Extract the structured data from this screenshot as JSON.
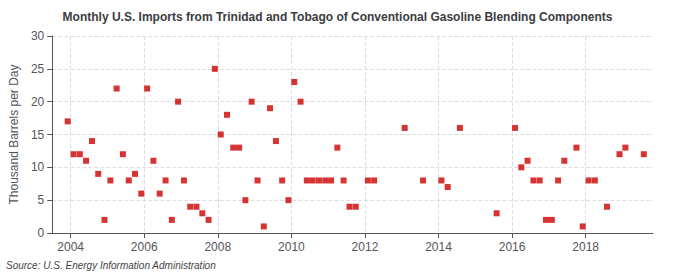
{
  "chart_data": {
    "type": "scatter",
    "title": "Monthly U.S. Imports from Trinidad and Tobago of Conventional Gasoline Blending Components",
    "ylabel": "Thousand Barrels per Day",
    "annotation": "Source: U.S. Energy Information Administration",
    "color": "#cc0000",
    "marker": "square",
    "grid": true,
    "xlim": [
      2003.5,
      2019.83
    ],
    "ylim": [
      0,
      30
    ],
    "xticks": [
      2004,
      2006,
      2008,
      2010,
      2012,
      2014,
      2016,
      2018
    ],
    "yticks": [
      0,
      5,
      10,
      15,
      20,
      25,
      30
    ],
    "x": [
      2003.92,
      2004.08,
      2004.25,
      2004.42,
      2004.58,
      2004.75,
      2004.92,
      2005.08,
      2005.25,
      2005.42,
      2005.58,
      2005.75,
      2005.92,
      2006.08,
      2006.25,
      2006.42,
      2006.58,
      2006.75,
      2006.92,
      2007.08,
      2007.25,
      2007.42,
      2007.58,
      2007.75,
      2007.92,
      2008.08,
      2008.25,
      2008.42,
      2008.58,
      2008.75,
      2008.92,
      2009.08,
      2009.25,
      2009.42,
      2009.58,
      2009.75,
      2009.92,
      2010.08,
      2010.25,
      2010.42,
      2010.58,
      2010.75,
      2010.92,
      2011.08,
      2011.25,
      2011.42,
      2011.58,
      2011.75,
      2012.08,
      2012.25,
      2013.08,
      2013.58,
      2014.08,
      2014.25,
      2014.58,
      2015.58,
      2016.08,
      2016.25,
      2016.42,
      2016.58,
      2016.75,
      2016.92,
      2017.08,
      2017.25,
      2017.42,
      2017.75,
      2017.92,
      2018.08,
      2018.25,
      2018.58,
      2018.92,
      2019.08,
      2019.58
    ],
    "values": [
      17,
      12,
      12,
      11,
      14,
      9,
      2,
      8,
      22,
      12,
      8,
      9,
      6,
      22,
      11,
      6,
      8,
      2,
      20,
      8,
      4,
      4,
      3,
      2,
      25,
      15,
      18,
      13,
      13,
      5,
      20,
      8,
      1,
      19,
      14,
      8,
      5,
      23,
      20,
      8,
      8,
      8,
      8,
      8,
      13,
      8,
      4,
      4,
      8,
      8,
      16,
      8,
      8,
      7,
      16,
      3,
      16,
      10,
      11,
      8,
      8,
      2,
      2,
      8,
      11,
      13,
      1,
      8,
      8,
      4,
      12,
      13,
      12
    ]
  }
}
